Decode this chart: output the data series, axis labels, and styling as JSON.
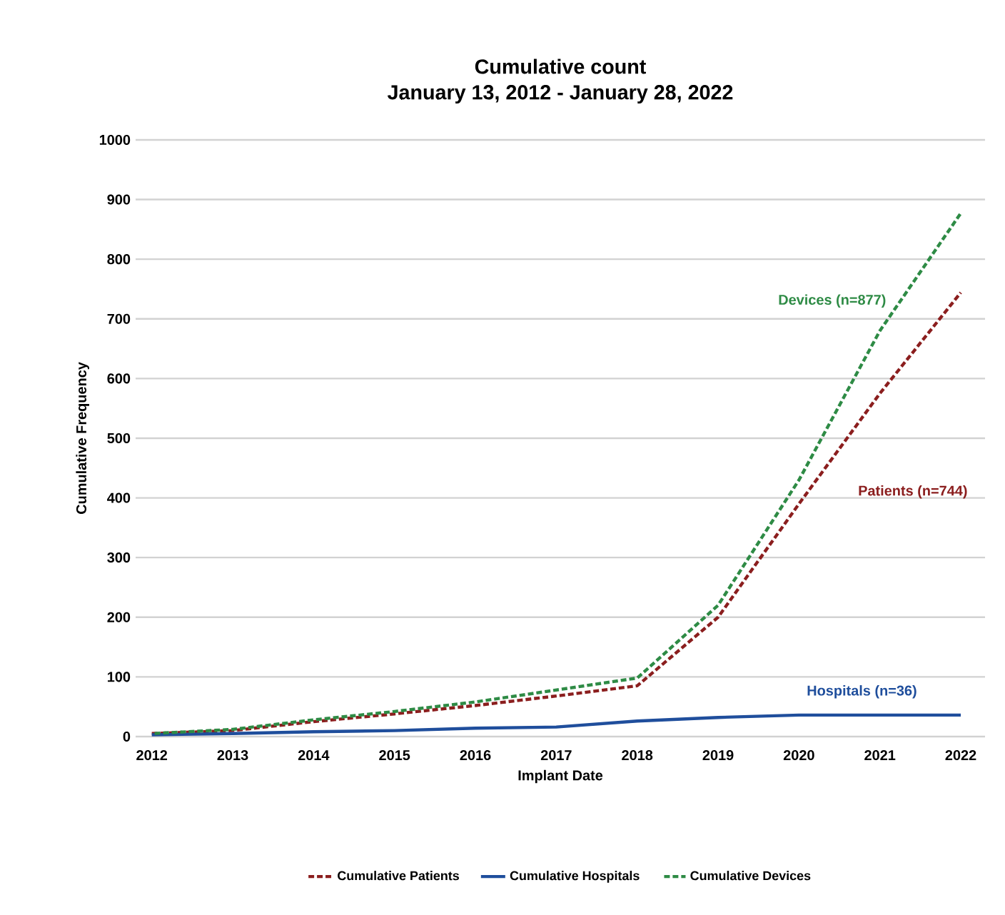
{
  "chart_data": {
    "type": "line",
    "title": "Cumulative count",
    "subtitle": "January 13, 2012 - January 28, 2022",
    "xlabel": "Implant Date",
    "ylabel": "Cumulative Frequency",
    "x": [
      2012,
      2013,
      2014,
      2015,
      2016,
      2017,
      2018,
      2019,
      2020,
      2021,
      2022
    ],
    "series": [
      {
        "name": "Cumulative Patients",
        "color": "#8b1e1e",
        "line_style": "dashed",
        "values": [
          5,
          10,
          25,
          38,
          52,
          68,
          85,
          200,
          390,
          575,
          744
        ]
      },
      {
        "name": "Cumulative Hospitals",
        "color": "#1f4e9c",
        "line_style": "solid",
        "values": [
          3,
          5,
          8,
          10,
          14,
          16,
          26,
          32,
          36,
          36,
          36
        ]
      },
      {
        "name": "Cumulative Devices",
        "color": "#2e8b45",
        "line_style": "dashed",
        "values": [
          5,
          12,
          28,
          42,
          58,
          78,
          98,
          220,
          430,
          680,
          877
        ]
      }
    ],
    "annotations": [
      "Patients (n=744)",
      "Hospitals (n=36)",
      "Devices (n=877)"
    ],
    "xlim": [
      2011.8,
      2022.3
    ],
    "xticks": [
      2012,
      2013,
      2014,
      2015,
      2016,
      2017,
      2018,
      2019,
      2020,
      2021,
      2022
    ],
    "ylim": [
      0,
      1000
    ],
    "yticks": [
      0,
      100,
      200,
      300,
      400,
      500,
      600,
      700,
      800,
      900,
      1000
    ],
    "grid": "y",
    "legend": "bottom",
    "marker": "none"
  }
}
